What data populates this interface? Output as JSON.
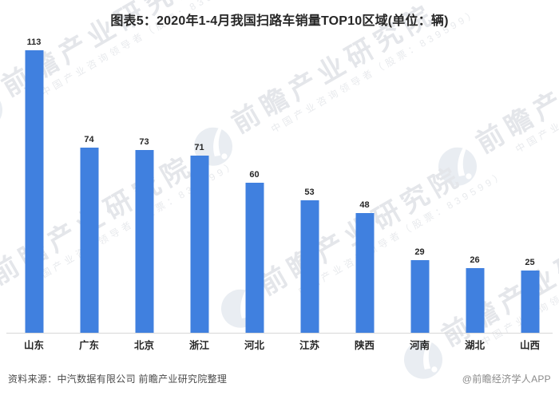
{
  "title": "图表5：2020年1-4月我国扫路车销量TOP10区域(单位：辆)",
  "chart_data": {
    "type": "bar",
    "title": "图表5：2020年1-4月我国扫路车销量TOP10区域(单位：辆)",
    "unit": "辆",
    "categories": [
      "山东",
      "广东",
      "北京",
      "浙江",
      "河北",
      "江苏",
      "陕西",
      "河南",
      "湖北",
      "山西"
    ],
    "values": [
      113,
      74,
      73,
      71,
      60,
      53,
      48,
      29,
      26,
      25
    ],
    "xlabel": "",
    "ylabel": "",
    "ylim": [
      0,
      120
    ],
    "grid": false,
    "legend_position": "none",
    "value_labels_shown": true,
    "bar_color": "#4080df"
  },
  "watermark": {
    "brand": "前瞻产业研究院",
    "slogan": "中国产业咨询领导者（股票：839599）",
    "logo": "qianzhan-circle-logo",
    "color": "#e4e6ea"
  },
  "footer": {
    "source": "资料来源：中汽数据有限公司 前瞻产业研究院整理",
    "credit": "@前瞻经济学人APP"
  }
}
